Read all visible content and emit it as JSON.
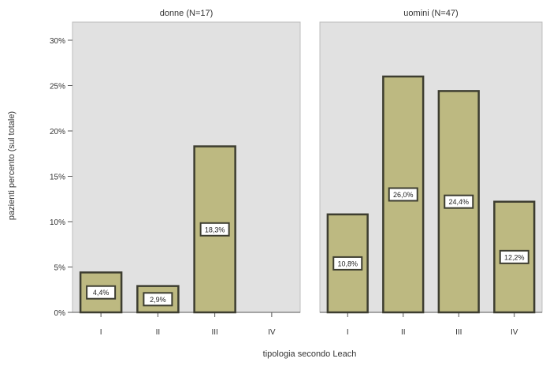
{
  "chart_data": {
    "type": "bar",
    "ylabel": "pazienti percento (sul totale)",
    "xlabel": "tipologia secondo Leach",
    "ylim": [
      0,
      32
    ],
    "yticks": [
      0,
      5,
      10,
      15,
      20,
      25,
      30
    ],
    "ytick_labels": [
      "0%",
      "5%",
      "10%",
      "15%",
      "20%",
      "25%",
      "30%"
    ],
    "categories": [
      "I",
      "II",
      "III",
      "IV"
    ],
    "grid": false,
    "colors": {
      "panel_bg": "#e1e1e1",
      "bar_fill": "#bdb981",
      "bar_stroke": "#3d3d30"
    },
    "panels": [
      {
        "title": "donne (N=17)",
        "values": [
          4.4,
          2.9,
          18.3,
          null
        ],
        "labels": [
          "4,4%",
          "2,9%",
          "18,3%",
          ""
        ]
      },
      {
        "title": "uomini (N=47)",
        "values": [
          10.8,
          26.0,
          24.4,
          12.2
        ],
        "labels": [
          "10,8%",
          "26,0%",
          "24,4%",
          "12,2%"
        ]
      }
    ]
  }
}
